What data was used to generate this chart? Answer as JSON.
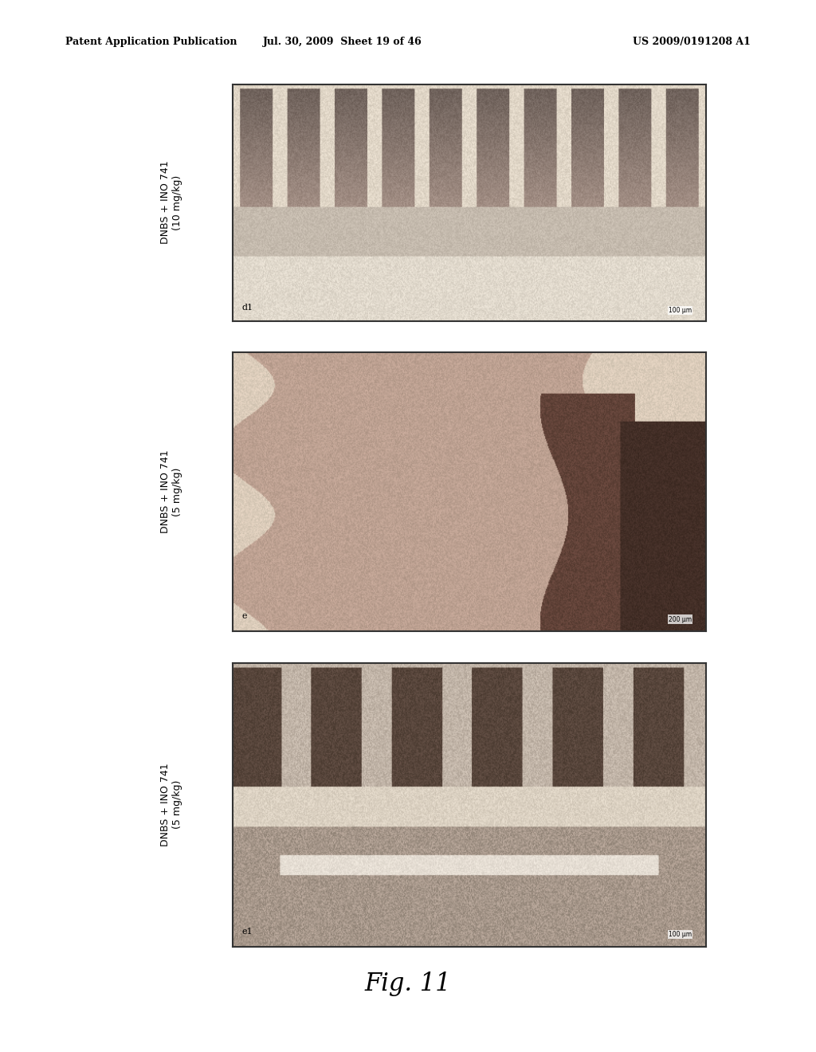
{
  "title": "Fig. 11",
  "header_left": "Patent Application Publication",
  "header_center": "Jul. 30, 2009  Sheet 19 of 46",
  "header_right": "US 2009/0191208 A1",
  "panels": [
    {
      "label": "DNBS + INO 741\n(10 mg/kg)",
      "sublabel": "d1",
      "scale_bar": "100 μm"
    },
    {
      "label": "DNBS + INO 741\n(5 mg/kg)",
      "sublabel": "e",
      "scale_bar": "200 μm"
    },
    {
      "label": "DNBS + INO 741\n(5 mg/kg)",
      "sublabel": "e1",
      "scale_bar": "100 μm"
    }
  ],
  "background_color": "#ffffff",
  "header_font_size": 9,
  "title_font_size": 22,
  "label_font_size": 9,
  "image_border_color": "#333333"
}
